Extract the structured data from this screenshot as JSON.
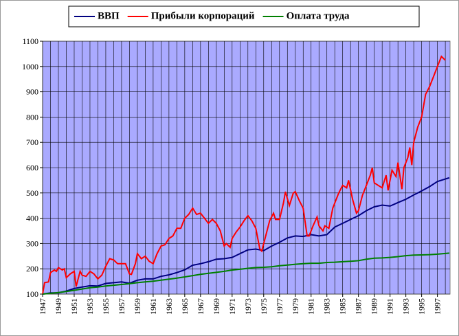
{
  "chart_data": {
    "type": "line",
    "xlim": [
      1947,
      1998.6
    ],
    "xticks": [
      1947,
      1949,
      1951,
      1953,
      1955,
      1957,
      1959,
      1961,
      1963,
      1965,
      1967,
      1969,
      1971,
      1973,
      1975,
      1977,
      1979,
      1981,
      1983,
      1985,
      1987,
      1989,
      1991,
      1993,
      1995,
      1997
    ],
    "xgrid_minor": [
      1948,
      1950,
      1952,
      1954,
      1956,
      1958,
      1960,
      1962,
      1964,
      1966,
      1968,
      1970,
      1972,
      1974,
      1976,
      1978,
      1980,
      1982,
      1984,
      1986,
      1988,
      1990,
      1992,
      1994,
      1996,
      1998
    ],
    "ylim": [
      100,
      1100
    ],
    "yticks": [
      100,
      200,
      300,
      400,
      500,
      600,
      700,
      800,
      900,
      1000,
      1100
    ],
    "grid": true,
    "background": "#aaaaff",
    "series": [
      {
        "name": "ВВП",
        "color": "#000080",
        "x": [
          1947,
          1948,
          1949,
          1950,
          1951,
          1952,
          1953,
          1954,
          1955,
          1956,
          1957,
          1958,
          1959,
          1960,
          1961,
          1962,
          1963,
          1964,
          1965,
          1966,
          1967,
          1968,
          1969,
          1970,
          1971,
          1972,
          1973,
          1974,
          1975,
          1976,
          1977,
          1978,
          1979,
          1980,
          1981,
          1982,
          1983,
          1984,
          1985,
          1986,
          1987,
          1988,
          1989,
          1990,
          1991,
          1992,
          1993,
          1994,
          1995,
          1996,
          1997,
          1998.5
        ],
        "values": [
          100,
          105,
          105,
          112,
          122,
          128,
          133,
          132,
          142,
          145,
          148,
          143,
          155,
          160,
          160,
          170,
          176,
          185,
          196,
          214,
          220,
          228,
          238,
          240,
          245,
          260,
          275,
          278,
          272,
          290,
          305,
          322,
          330,
          328,
          335,
          330,
          335,
          365,
          380,
          395,
          410,
          430,
          445,
          452,
          448,
          462,
          475,
          492,
          508,
          525,
          545,
          560
        ]
      },
      {
        "name": "Прибыли корпораций",
        "color": "#ff0000",
        "x": [
          1947,
          1947.25,
          1947.75,
          1948,
          1948.5,
          1948.75,
          1949,
          1949.5,
          1949.75,
          1950,
          1950.5,
          1951,
          1951.25,
          1951.75,
          1952,
          1952.5,
          1953,
          1953.5,
          1954,
          1954.5,
          1955,
          1955.5,
          1956,
          1956.5,
          1957,
          1957.5,
          1958,
          1958.25,
          1958.75,
          1959,
          1959.5,
          1960,
          1960.5,
          1961,
          1961.5,
          1962,
          1962.5,
          1963,
          1963.5,
          1964,
          1964.5,
          1965,
          1965.5,
          1966,
          1966.5,
          1967,
          1967.5,
          1968,
          1968.5,
          1969,
          1969.5,
          1970,
          1970.25,
          1970.75,
          1971,
          1971.5,
          1972,
          1972.5,
          1973,
          1973.5,
          1974,
          1974.5,
          1974.75,
          1975.25,
          1975.75,
          1976.25,
          1976.5,
          1977,
          1977.5,
          1977.75,
          1978.25,
          1978.75,
          1979,
          1979.5,
          1980,
          1980.5,
          1980.75,
          1981.25,
          1981.75,
          1982,
          1982.5,
          1982.75,
          1983.25,
          1983.75,
          1984.5,
          1985,
          1985.5,
          1985.75,
          1986.25,
          1986.75,
          1987,
          1987.5,
          1988,
          1988.5,
          1988.75,
          1989,
          1989.5,
          1990,
          1990.5,
          1990.75,
          1991.25,
          1991.75,
          1992,
          1992.5,
          1992.75,
          1993.25,
          1993.5,
          1993.75,
          1994,
          1994.5,
          1995,
          1995.5,
          1996,
          1996.5,
          1997,
          1997.5,
          1998
        ],
        "values": [
          100,
          145,
          148,
          185,
          195,
          190,
          205,
          195,
          200,
          165,
          180,
          190,
          130,
          190,
          175,
          170,
          190,
          180,
          160,
          175,
          210,
          240,
          235,
          220,
          220,
          220,
          180,
          178,
          220,
          260,
          240,
          250,
          230,
          220,
          260,
          290,
          295,
          320,
          330,
          360,
          360,
          400,
          415,
          440,
          415,
          420,
          400,
          380,
          395,
          380,
          350,
          290,
          300,
          285,
          320,
          345,
          365,
          390,
          410,
          390,
          360,
          280,
          270,
          330,
          390,
          420,
          395,
          395,
          460,
          505,
          450,
          500,
          505,
          470,
          440,
          330,
          330,
          370,
          405,
          370,
          350,
          370,
          360,
          440,
          500,
          530,
          520,
          550,
          475,
          420,
          430,
          490,
          530,
          570,
          600,
          540,
          530,
          520,
          570,
          510,
          590,
          565,
          620,
          515,
          600,
          640,
          680,
          610,
          700,
          760,
          800,
          890,
          920,
          960,
          1000,
          1040,
          1025
        ]
      },
      {
        "name": "Оплата труда",
        "color": "#008000",
        "x": [
          1947,
          1948,
          1949,
          1950,
          1951,
          1952,
          1953,
          1954,
          1955,
          1956,
          1957,
          1958,
          1959,
          1960,
          1961,
          1962,
          1963,
          1964,
          1965,
          1966,
          1967,
          1968,
          1969,
          1970,
          1971,
          1972,
          1973,
          1974,
          1975,
          1976,
          1977,
          1978,
          1979,
          1980,
          1981,
          1982,
          1983,
          1984,
          1985,
          1986,
          1987,
          1988,
          1989,
          1990,
          1991,
          1992,
          1993,
          1994,
          1995,
          1996,
          1997,
          1998.5
        ],
        "values": [
          100,
          103,
          106,
          110,
          115,
          120,
          125,
          128,
          132,
          135,
          138,
          141,
          145,
          148,
          151,
          155,
          159,
          163,
          168,
          173,
          178,
          182,
          186,
          190,
          195,
          198,
          202,
          205,
          206,
          208,
          212,
          215,
          218,
          220,
          222,
          222,
          225,
          226,
          228,
          230,
          232,
          238,
          242,
          243,
          245,
          248,
          252,
          254,
          255,
          256,
          258,
          262
        ]
      }
    ]
  }
}
